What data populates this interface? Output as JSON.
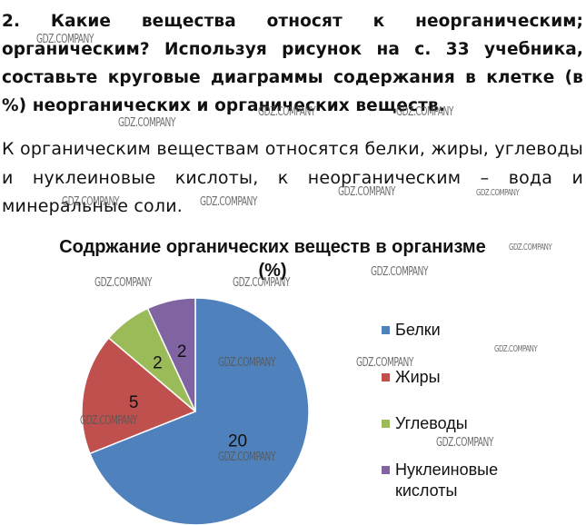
{
  "question": {
    "text": "2. Какие вещества относят к неорганическим; органическим? Используя рисунок на с. 33 учебника, составьте круговые диаграммы содержания в клетке (в %) неорганических и органических веществ."
  },
  "answer": {
    "text": "К органическим веществам относятся белки, жиры, углеводы и нуклеиновые кислоты, к неорганическим – вода и минеральные соли."
  },
  "watermark": "GDZ.COMPANY",
  "chart_data": {
    "type": "pie",
    "title": "Содржание органических веществ в организме (%)",
    "categories": [
      "Белки",
      "Жиры",
      "Углеводы",
      "Нуклеиновые кислоты"
    ],
    "values": [
      20,
      5,
      2,
      2
    ],
    "data_labels": [
      "20",
      "5",
      "2",
      "2"
    ],
    "colors": [
      "#4f81bd",
      "#c0504d",
      "#9bbb59",
      "#8064a2"
    ],
    "legend_position": "right"
  }
}
